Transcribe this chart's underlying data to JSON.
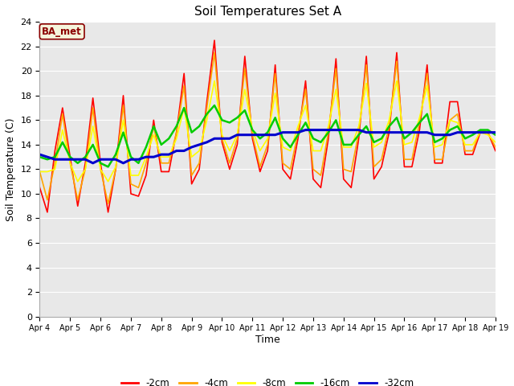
{
  "title": "Soil Temperatures Set A",
  "xlabel": "Time",
  "ylabel": "Soil Temperature (C)",
  "xlim": [
    0,
    15
  ],
  "ylim": [
    0,
    24
  ],
  "yticks": [
    0,
    2,
    4,
    6,
    8,
    10,
    12,
    14,
    16,
    18,
    20,
    22,
    24
  ],
  "xtick_labels": [
    "Apr 4",
    "Apr 5",
    "Apr 6",
    "Apr 7",
    "Apr 8",
    "Apr 9",
    "Apr 10",
    "Apr 11",
    "Apr 12",
    "Apr 13",
    "Apr 14",
    "Apr 15",
    "Apr 16",
    "Apr 17",
    "Apr 18",
    "Apr 19"
  ],
  "fig_bg_color": "#ffffff",
  "plot_bg_color": "#e8e8e8",
  "annotation_text": "BA_met",
  "annotation_color": "#8b0000",
  "annotation_bg": "#f5f5dc",
  "line_colors": {
    "-2cm": "#ff0000",
    "-4cm": "#ffa500",
    "-8cm": "#ffff00",
    "-16cm": "#00cc00",
    "-32cm": "#0000cd"
  },
  "line_widths": {
    "-2cm": 1.2,
    "-4cm": 1.2,
    "-8cm": 1.2,
    "-16cm": 1.8,
    "-32cm": 2.2
  },
  "data": {
    "x_days": 15,
    "n_points_per_day": 4,
    "-2cm": [
      10.5,
      8.5,
      13.5,
      17.0,
      13.0,
      9.0,
      12.5,
      17.8,
      12.5,
      8.5,
      12.0,
      18.0,
      10.0,
      9.8,
      11.5,
      16.0,
      11.8,
      11.8,
      15.0,
      19.8,
      10.8,
      12.0,
      17.5,
      22.5,
      14.2,
      12.0,
      14.0,
      21.2,
      14.5,
      11.8,
      13.5,
      20.5,
      12.0,
      11.2,
      14.5,
      19.2,
      11.2,
      10.5,
      14.5,
      21.0,
      11.2,
      10.5,
      14.5,
      21.2,
      11.2,
      12.2,
      15.0,
      21.5,
      12.2,
      12.2,
      15.2,
      20.5,
      12.5,
      12.5,
      17.5,
      17.5,
      13.2,
      13.2,
      15.0,
      15.0,
      13.5
    ],
    "-4cm": [
      11.8,
      9.5,
      12.5,
      16.5,
      12.5,
      9.5,
      12.0,
      17.0,
      12.0,
      9.2,
      12.0,
      17.2,
      10.8,
      10.5,
      12.5,
      15.5,
      12.5,
      12.5,
      15.0,
      18.8,
      11.5,
      12.5,
      17.0,
      21.5,
      14.5,
      12.5,
      14.5,
      20.2,
      14.8,
      12.2,
      14.0,
      19.8,
      12.5,
      12.0,
      15.0,
      18.5,
      12.0,
      11.5,
      15.0,
      20.2,
      12.0,
      11.8,
      15.0,
      20.5,
      12.2,
      12.8,
      15.5,
      20.8,
      12.8,
      12.8,
      15.8,
      19.8,
      12.8,
      12.8,
      16.0,
      16.5,
      13.5,
      13.5,
      15.2,
      15.0,
      13.8
    ],
    "-8cm": [
      11.8,
      11.8,
      12.0,
      15.2,
      12.5,
      11.0,
      12.0,
      15.5,
      12.0,
      11.0,
      12.2,
      16.0,
      11.5,
      11.5,
      13.0,
      14.8,
      13.0,
      13.0,
      14.5,
      17.0,
      13.0,
      13.5,
      16.0,
      19.2,
      14.8,
      13.5,
      14.8,
      18.5,
      15.2,
      13.5,
      14.5,
      18.2,
      13.8,
      13.5,
      15.5,
      17.2,
      13.5,
      13.5,
      15.5,
      18.5,
      13.8,
      13.8,
      15.5,
      19.0,
      13.8,
      14.2,
      16.0,
      19.2,
      14.0,
      14.2,
      16.2,
      18.8,
      13.8,
      14.0,
      16.0,
      15.8,
      14.0,
      14.0,
      15.0,
      14.8,
      14.2
    ],
    "-16cm": [
      13.0,
      12.8,
      13.0,
      14.2,
      13.0,
      12.5,
      13.0,
      14.0,
      12.5,
      12.2,
      13.2,
      15.0,
      13.0,
      12.5,
      13.8,
      15.5,
      14.0,
      14.5,
      15.5,
      17.0,
      15.0,
      15.5,
      16.5,
      17.2,
      16.0,
      15.8,
      16.2,
      16.8,
      15.2,
      14.5,
      15.0,
      16.2,
      14.5,
      13.8,
      14.8,
      15.8,
      14.5,
      14.2,
      15.0,
      16.0,
      14.0,
      14.0,
      14.8,
      15.5,
      14.2,
      14.5,
      15.5,
      16.2,
      14.5,
      15.0,
      15.8,
      16.5,
      14.2,
      14.5,
      15.2,
      15.5,
      14.5,
      14.8,
      15.2,
      15.2,
      14.8
    ],
    "-32cm": [
      13.2,
      13.0,
      12.8,
      12.8,
      12.8,
      12.8,
      12.8,
      12.5,
      12.8,
      12.8,
      12.8,
      12.5,
      12.8,
      12.8,
      13.0,
      13.0,
      13.2,
      13.2,
      13.5,
      13.5,
      13.8,
      14.0,
      14.2,
      14.5,
      14.5,
      14.5,
      14.8,
      14.8,
      14.8,
      14.8,
      14.8,
      14.8,
      15.0,
      15.0,
      15.0,
      15.2,
      15.2,
      15.2,
      15.2,
      15.2,
      15.2,
      15.2,
      15.2,
      15.0,
      15.0,
      15.0,
      15.0,
      15.0,
      15.0,
      15.0,
      15.0,
      15.0,
      14.8,
      14.8,
      14.8,
      15.0,
      15.0,
      15.0,
      15.0,
      15.0,
      15.0
    ]
  }
}
